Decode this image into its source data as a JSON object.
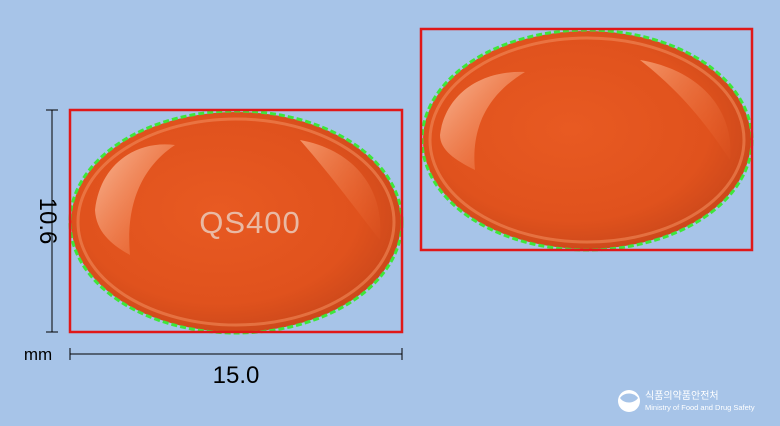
{
  "pill": {
    "imprint_front": "QS400",
    "imprint_back": "",
    "color": "#e2551f",
    "highlight_color": "#f79a6b",
    "outline_color": "#3ee63a",
    "box_color": "#e01818"
  },
  "dimensions": {
    "height": "10.6",
    "width": "15.0",
    "unit": "mm"
  },
  "logo": {
    "name_ko": "식품의약품안전처",
    "name_en": "Ministry of Food and Drug Safety"
  }
}
